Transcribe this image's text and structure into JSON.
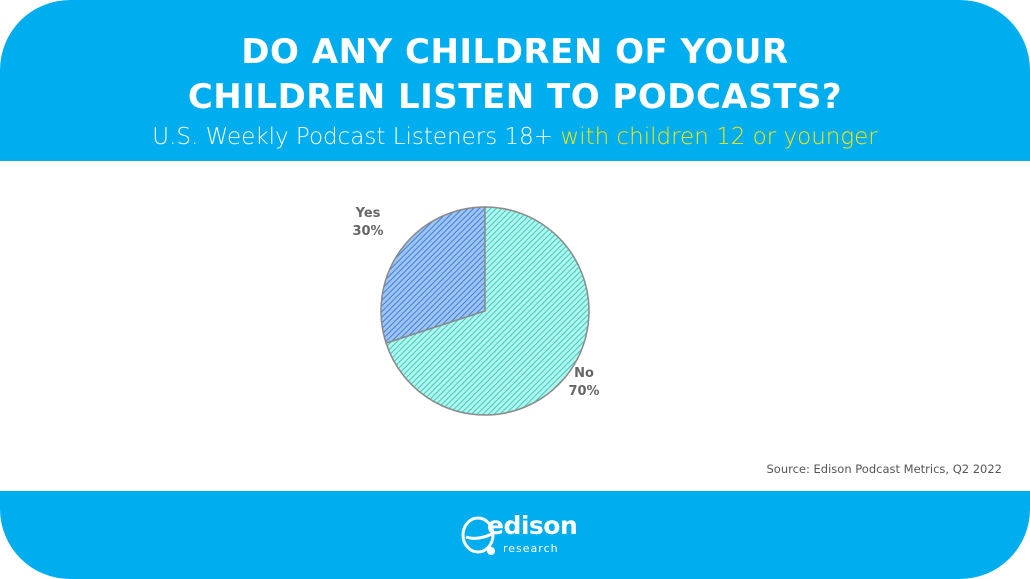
{
  "header": {
    "title_line1": "DO ANY CHILDREN OF YOUR",
    "title_line2": "CHILDREN LISTEN TO PODCASTS?",
    "subtitle_main": "U.S. Weekly Podcast Listeners 18+ ",
    "subtitle_highlight": "with children 12 or younger",
    "subtitle_highlight_color": "#ffe600"
  },
  "chart_data": {
    "type": "pie",
    "title": "DO ANY CHILDREN OF YOUR CHILDREN LISTEN TO PODCASTS?",
    "subtitle": "U.S. Weekly Podcast Listeners 18+ with children 12 or younger",
    "slices": [
      {
        "label": "Yes",
        "value": 30,
        "display": "30%",
        "color": "#4a86d8",
        "pattern": "diagonal-hatch"
      },
      {
        "label": "No",
        "value": 70,
        "display": "70%",
        "color": "#3ed6c6",
        "pattern": "diagonal-hatch"
      }
    ],
    "legend": "none",
    "labels": "outside slices"
  },
  "source": "Source: Edison Podcast Metrics, Q2 2022",
  "logo": {
    "word": "edison",
    "sub": "research",
    "icon": "edison-research-logo-icon"
  },
  "colors": {
    "brand_blue": "#00aeef",
    "background": "#ffffff"
  }
}
